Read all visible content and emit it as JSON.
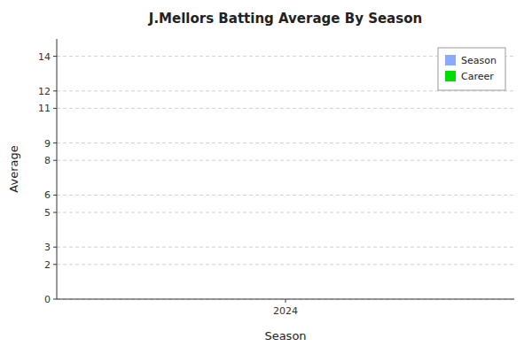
{
  "chart_data": {
    "type": "bar",
    "title": "J.Mellors Batting Average By Season",
    "xlabel": "Season",
    "ylabel": "Average",
    "x": [],
    "xlim": [
      2023.6,
      2024.4
    ],
    "xticks": [
      2024
    ],
    "ylim": [
      0,
      15
    ],
    "yticks": [
      0,
      2,
      3,
      5,
      6,
      8,
      9,
      11,
      12,
      14
    ],
    "grid": true,
    "legend": "upper right",
    "series": [
      {
        "name": "Season",
        "color": "#88aaff",
        "values": []
      },
      {
        "name": "Career",
        "color": "#00dd00",
        "values": []
      }
    ]
  }
}
